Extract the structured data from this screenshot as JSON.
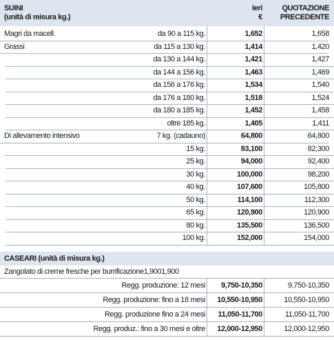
{
  "suini": {
    "header": {
      "title": "SUINI",
      "subtitle": "(unità di misura kg.)",
      "col_ieri": "Ieri",
      "col_ieri_unit": "€",
      "col_prev_1": "QUOTAZIONE",
      "col_prev_2": "PRECEDENTE"
    },
    "rows": [
      [
        "Magri da macell.",
        "da 90 a 115 kg.",
        "1,652",
        "1,658"
      ],
      [
        "Grassi",
        "da 115 a 130 kg.",
        "1,414",
        "1,420"
      ],
      [
        null,
        "da 130 a 144 kg.",
        "1,421",
        "1,427"
      ],
      [
        null,
        "da 144 a 156 kg.",
        "1,463",
        "1,469"
      ],
      [
        null,
        "da 156 a 176 kg.",
        "1,534",
        "1,540"
      ],
      [
        null,
        "da 176 a 180 kg.",
        "1,518",
        "1,524"
      ],
      [
        null,
        "da 180 a 185 kg.",
        "1,452",
        "1,458"
      ],
      [
        null,
        "oltre 185 kg.",
        "1,405",
        "1,411"
      ],
      [
        "Di allevamento intensivo",
        "7 kg. (cadauno)",
        "64,800",
        "64,800"
      ],
      [
        null,
        "15 kg.",
        "83,100",
        "82,300"
      ],
      [
        null,
        "25 kg.",
        "94,000",
        "92,400"
      ],
      [
        null,
        "30 kg.",
        "100,000",
        "98,200"
      ],
      [
        null,
        "40 kg.",
        "107,600",
        "105,800"
      ],
      [
        null,
        "50 kg.",
        "114,100",
        "112,300"
      ],
      [
        null,
        "65 kg.",
        "120,900",
        "120,900"
      ],
      [
        null,
        "80 kg.",
        "135,500",
        "136,500"
      ],
      [
        null,
        "100 kg.",
        "152,000",
        "154,000"
      ]
    ]
  },
  "caseari": {
    "title": "CASEARI (unità di misura kg.)",
    "note": "Zangolato di creme fresche per burrificazione1,9001,900",
    "rows": [
      [
        "Regg. produzione: 12 mesi",
        "9,750-10,350",
        "9,750-10,350"
      ],
      [
        "Regg. produzione: fino a 18 mesi",
        "10,550-10,950",
        "10,550-10,950"
      ],
      [
        "Regg. produzione fino a 24 mesi",
        "11,050-11,700",
        "11,050-11,700"
      ],
      [
        "Regg. produz.: fino a 30 mesi e oltre",
        "12,000-12,950",
        "12,000-12,950"
      ]
    ]
  }
}
